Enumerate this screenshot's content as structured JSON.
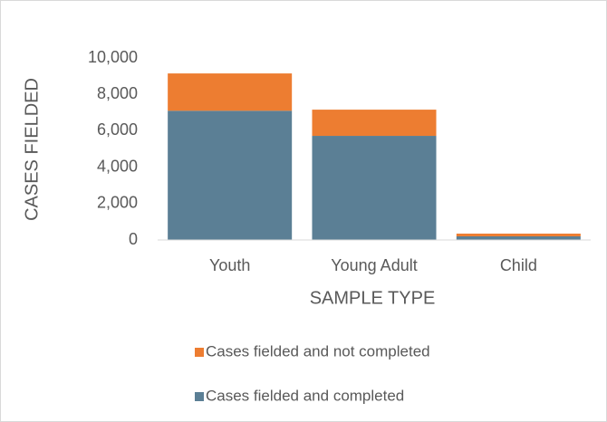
{
  "chart_data": {
    "type": "bar",
    "stacked": true,
    "x_label": "SAMPLE TYPE",
    "y_label": "CASES FIELDED",
    "categories": [
      "Youth",
      "Young Adult",
      "Child"
    ],
    "series": [
      {
        "name": "Cases fielded and completed",
        "color": "#5b7f95",
        "values": [
          7100,
          5720,
          200
        ]
      },
      {
        "name": "Cases fielded and not completed",
        "color": "#ed7d31",
        "values": [
          2050,
          1440,
          150
        ]
      }
    ],
    "ylim": [
      0,
      10000
    ],
    "yticks": [
      0,
      {
        "value": 2000,
        "label": "2,000"
      },
      {
        "value": 4000,
        "label": "4,000"
      },
      {
        "value": 6000,
        "label": "6,000"
      },
      {
        "value": 8000,
        "label": "8,000"
      },
      {
        "value": 10000,
        "label": "10,000"
      }
    ],
    "grid": false
  }
}
